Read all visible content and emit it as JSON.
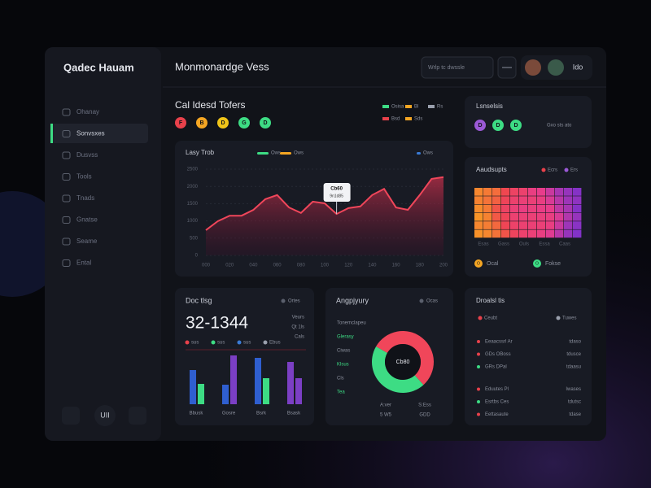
{
  "sidebar": {
    "brand": "Qadec Hauam",
    "items": [
      "Ohanay",
      "Sonvsxes",
      "Dusvss",
      "Tools",
      "Tnads",
      "Gnatse",
      "Seame",
      "Ental"
    ],
    "bottom_button": "UII"
  },
  "header": {
    "title": "Monmonardge Vess",
    "search": "Wrlp tc dwssle",
    "user": "Ido"
  },
  "overview": {
    "title": "Cal Idesd Tofers",
    "badges": [
      {
        "letter": "F",
        "color": "#e8414b"
      },
      {
        "letter": "B",
        "color": "#f5a623"
      },
      {
        "letter": "D",
        "color": "#f0c419"
      },
      {
        "letter": "G",
        "color": "#3ddc84"
      },
      {
        "letter": "D",
        "color": "#3ddc84"
      }
    ],
    "legend": [
      {
        "name": "Osisa",
        "color": "#3ddc84"
      },
      {
        "name": "Bl",
        "color": "#f5a623"
      },
      {
        "name": "Rs",
        "color": "#9aa0ad"
      },
      {
        "name": "Bsd",
        "color": "#e8414b"
      },
      {
        "name": "Sds",
        "color": "#f5a623"
      }
    ]
  },
  "status_card": {
    "title": "Lsnselsis",
    "badges": [
      {
        "letter": "D",
        "color": "#9b59d6"
      },
      {
        "letter": "D",
        "color": "#3ddc84"
      },
      {
        "letter": "D",
        "color": "#3ddc84"
      }
    ],
    "note": "Gxo sts ato"
  },
  "area_chart": {
    "type": "area",
    "title": "Lasy Trob",
    "color": "#f0465a",
    "legend": [
      {
        "name": "Ows",
        "color": "#3ddc84"
      },
      {
        "name": "Ows",
        "color": "#f5a623"
      },
      {
        "name": "Ows",
        "color": "#3a7bd5"
      }
    ],
    "categories": [
      "000",
      null,
      "020",
      null,
      "040",
      null,
      "060",
      null,
      "080",
      null,
      "100",
      null,
      "120",
      null,
      "140",
      null,
      "160",
      null,
      "180",
      null,
      "200"
    ],
    "values": [
      730,
      990,
      1150,
      1150,
      1320,
      1630,
      1750,
      1390,
      1230,
      1560,
      1510,
      1200,
      1370,
      1420,
      1750,
      1930,
      1390,
      1320,
      1750,
      2220,
      2270
    ],
    "ylim": [
      0,
      2500
    ],
    "yticks": [
      0,
      500,
      1000,
      1500,
      2000,
      2500
    ],
    "grid": true,
    "tooltip": {
      "title": "Cb60",
      "text": "9n1d85"
    }
  },
  "heatmap": {
    "title": "Aaudsupts",
    "legend": [
      {
        "name": "Ecrs",
        "color": "#e8414b"
      },
      {
        "name": "Ers",
        "color": "#9b59d6"
      }
    ],
    "values": [
      [
        10,
        15,
        20,
        35,
        45,
        50,
        60,
        65,
        75,
        85,
        90,
        95
      ],
      [
        12,
        18,
        25,
        40,
        50,
        55,
        55,
        60,
        70,
        80,
        88,
        92
      ],
      [
        8,
        15,
        30,
        45,
        55,
        60,
        58,
        62,
        65,
        78,
        85,
        95
      ],
      [
        5,
        12,
        28,
        40,
        52,
        55,
        55,
        58,
        60,
        70,
        82,
        90
      ],
      [
        10,
        14,
        22,
        38,
        48,
        52,
        54,
        55,
        60,
        75,
        88,
        94
      ],
      [
        6,
        10,
        18,
        30,
        42,
        50,
        55,
        60,
        68,
        80,
        90,
        96
      ]
    ],
    "x_labels": [
      "Esas",
      "Gass",
      "Ouls",
      "Essa",
      "Caas"
    ],
    "items": [
      {
        "icon": "O",
        "label": "Ocal",
        "color": "#f5a623"
      },
      {
        "icon": "O",
        "label": "Fokse",
        "color": "#3ddc84"
      }
    ]
  },
  "stats_card": {
    "title": "Doc tlsg",
    "badge": "Ortes",
    "big_number": "32-1344",
    "side": [
      "Veurs",
      "Qt 1ls",
      "Cals"
    ],
    "legend": [
      {
        "name": "sus",
        "color": "#e8414b"
      },
      {
        "name": "sus",
        "color": "#3ddc84"
      },
      {
        "name": "sus",
        "color": "#3a7bd5"
      },
      {
        "name": "Ebus",
        "color": "#9aa0ad"
      }
    ],
    "bar_chart": {
      "type": "bar",
      "categories": [
        "Bbusk",
        "Gosre",
        "Bsrk",
        "Bsask"
      ],
      "values": [
        42,
        25,
        24,
        60,
        57,
        32,
        52,
        32
      ],
      "colors": [
        "#2f5fd0",
        "#3ddc84",
        "#2f5fd0",
        "#7b3fc4",
        "#2f5fd0",
        "#3ddc84",
        "#7b3fc4",
        "#7b3fc4"
      ],
      "ylim": [
        0,
        70
      ]
    }
  },
  "donut_card": {
    "title": "Angpjyury",
    "badge": "Ocas",
    "center": "Cb80",
    "donut": {
      "type": "pie",
      "segments": [
        {
          "color": "#f0465a",
          "value": 55
        },
        {
          "color": "#3ddc84",
          "value": 45
        }
      ]
    },
    "side": [
      "Tonemclapeu",
      "Glerasy",
      "Ciwas",
      "Klsus",
      "Cls",
      "Tea"
    ],
    "bottom": [
      "A:ver",
      "S:Ess",
      "5 W5",
      "GDD"
    ]
  },
  "list_card": {
    "title": "Droalsl tis",
    "legend": [
      {
        "name": "Ceubt",
        "color": "#e8414b"
      },
      {
        "name": "Tuwes",
        "color": "#9aa0ad"
      }
    ],
    "rows": [
      {
        "color": "#e8414b",
        "label": "Eeaacssrl Ar",
        "value": "tdaso"
      },
      {
        "color": "#e8414b",
        "label": "GDs OBoss",
        "value": "tdusce"
      },
      {
        "color": "#3ddc84",
        "label": "GRs DPal",
        "value": "tdaasu"
      },
      {
        "color": "#e8414b",
        "label": "Eduutes Pl",
        "value": "Iwases"
      },
      {
        "color": "#3ddc84",
        "label": "Esrtbs Ces",
        "value": "tdutsc"
      },
      {
        "color": "#e8414b",
        "label": "Eettasaute",
        "value": "tdase"
      }
    ]
  }
}
